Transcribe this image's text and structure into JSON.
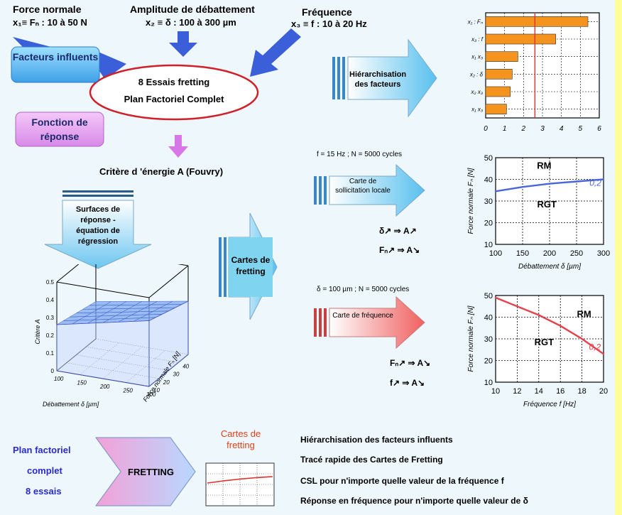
{
  "inputs": {
    "f1_title": "Force normale",
    "f1_def": "x₁≡ Fₙ : 10 à 50 N",
    "f2_title": "Amplitude de débattement",
    "f2_def": "x₂ ≡ δ : 100 à 300 µm",
    "f3_title": "Fréquence",
    "f3_def": "x₃ ≡ f : 10 à 20 Hz"
  },
  "labels": {
    "facteurs": "Facteurs influents",
    "fonction": "Fonction de réponse",
    "plan_line1": "8 Essais fretting",
    "plan_line2": "Plan Factoriel Complet",
    "critere": "Critère d 'énergie A (Fouvry)",
    "surfaces": "Surfaces de réponse - équation de régression",
    "hierarch": "Hiérarchisation des facteurs",
    "cartes": "Cartes de fretting",
    "carte_sollicitation": "Carte de sollicitation locale",
    "carte_frequence": "Carte de fréquence",
    "cond1": "f = 15 Hz ; N = 5000 cycles",
    "cond2": "δ = 100 µm ; N = 5000 cycles",
    "rule1": "δ↗ ⇒ A↗",
    "rule2": "Fₙ↗ ⇒ A↘",
    "rule3": "Fₙ↗ ⇒ A↘",
    "rule4": "f↗ ⇒ A↘"
  },
  "summary": {
    "plan": [
      "Plan factoriel",
      "complet",
      "8 essais"
    ],
    "fretting": "FRETTING",
    "cartes": "Cartes de fretting",
    "items": [
      "Hiérarchisation des facteurs influents",
      "Tracé rapide des Cartes de Fretting",
      "CSL pour n'importe quelle valeur de la fréquence f",
      "Réponse en  fréquence pour n'importe quelle valeur de δ"
    ]
  },
  "colors": {
    "accent_blue": "#4a66d8",
    "accent_red": "#e8404a",
    "bar": "#f5931f",
    "plan_text": "#2a2ad0",
    "cartes_title": "#e0401a"
  },
  "chart_data": [
    {
      "type": "bar",
      "orientation": "horizontal",
      "categories": [
        "x₁ : Fₙ",
        "x₃ : f",
        "x₁ x₃",
        "x₂ : δ",
        "x₂ x₃",
        "x₁ x₃"
      ],
      "values": [
        5.4,
        3.7,
        1.7,
        1.4,
        1.3,
        1.1
      ],
      "threshold": 2.6,
      "xlim": [
        0,
        6
      ],
      "xticks": [
        "0",
        "1",
        "2",
        "3",
        "4",
        "5",
        "6"
      ]
    },
    {
      "type": "line",
      "title": "f = 15 Hz ; N = 5000 cycles",
      "xlabel": "Débattement δ [µm]",
      "ylabel": "Force normale Fₙ [N]",
      "xlim": [
        100,
        300
      ],
      "ylim": [
        10,
        50
      ],
      "xticks": [
        "100",
        "150",
        "200",
        "250",
        "300"
      ],
      "yticks": [
        "10",
        "20",
        "30",
        "40",
        "50"
      ],
      "series": [
        {
          "name": "0,2",
          "x": [
            100,
            150,
            200,
            250,
            300
          ],
          "y": [
            34.5,
            36.5,
            38,
            39,
            40
          ]
        }
      ],
      "regions": [
        "RM",
        "RGT"
      ]
    },
    {
      "type": "line",
      "title": "δ = 100 µm ; N = 5000 cycles",
      "xlabel": "Fréquence f [Hz]",
      "ylabel": "Force normale Fₙ [N]",
      "xlim": [
        10,
        20
      ],
      "ylim": [
        10,
        50
      ],
      "xticks": [
        "10",
        "12",
        "14",
        "16",
        "18",
        "20"
      ],
      "yticks": [
        "10",
        "20",
        "30",
        "40",
        "50"
      ],
      "series": [
        {
          "name": "0,2",
          "x": [
            10,
            12,
            14,
            16,
            18,
            20
          ],
          "y": [
            49,
            45,
            41,
            36,
            30,
            23
          ]
        }
      ],
      "regions": [
        "RM",
        "RGT"
      ]
    },
    {
      "type": "surface",
      "xlabel": "Débattement δ [µm]",
      "ylabel": "Force normale Fₙ [N]",
      "zlabel": "Critère A",
      "xticks": [
        "100",
        "150",
        "200",
        "250",
        "300"
      ],
      "yticks": [
        "10",
        "20",
        "30",
        "40",
        "50"
      ],
      "zticks": [
        "0",
        "0.1",
        "0.2",
        "0.3",
        "0.4",
        "0.5"
      ]
    }
  ]
}
